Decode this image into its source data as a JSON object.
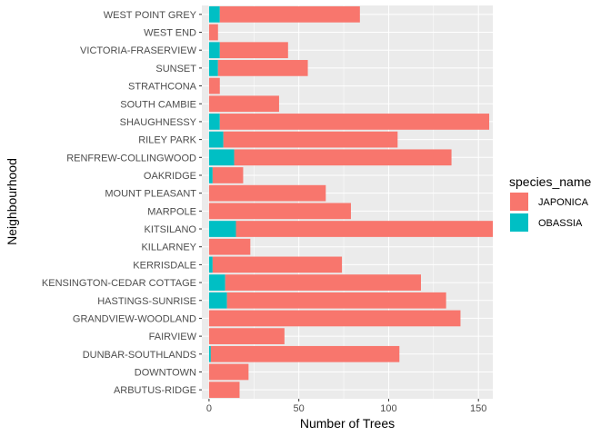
{
  "chart_data": {
    "type": "bar",
    "orientation": "horizontal",
    "stacked": true,
    "xlabel": "Number of Trees",
    "ylabel": "Neighbourhood",
    "xlim": [
      -4,
      158
    ],
    "x_ticks": [
      0,
      50,
      100,
      150
    ],
    "grid": true,
    "legend_position": "right",
    "legend_title": "species_name",
    "categories": [
      "ARBUTUS-RIDGE",
      "DOWNTOWN",
      "DUNBAR-SOUTHLANDS",
      "FAIRVIEW",
      "GRANDVIEW-WOODLAND",
      "HASTINGS-SUNRISE",
      "KENSINGTON-CEDAR COTTAGE",
      "KERRISDALE",
      "KILLARNEY",
      "KITSILANO",
      "MARPOLE",
      "MOUNT PLEASANT",
      "OAKRIDGE",
      "RENFREW-COLLINGWOOD",
      "RILEY PARK",
      "SHAUGHNESSY",
      "SOUTH CAMBIE",
      "STRATHCONA",
      "SUNSET",
      "VICTORIA-FRASERVIEW",
      "WEST END",
      "WEST POINT GREY"
    ],
    "series": [
      {
        "name": "OBASSIA",
        "color": "#00BFC4",
        "values": [
          0,
          0,
          1,
          0,
          0,
          10,
          9,
          2,
          0,
          15,
          0,
          0,
          2,
          14,
          8,
          6,
          0,
          0,
          5,
          6,
          0,
          6
        ]
      },
      {
        "name": "JAPONICA",
        "color": "#F8766D",
        "values": [
          17,
          22,
          105,
          42,
          140,
          122,
          109,
          72,
          23,
          143,
          79,
          65,
          17,
          121,
          97,
          150,
          39,
          6,
          50,
          38,
          5,
          78
        ]
      }
    ]
  }
}
